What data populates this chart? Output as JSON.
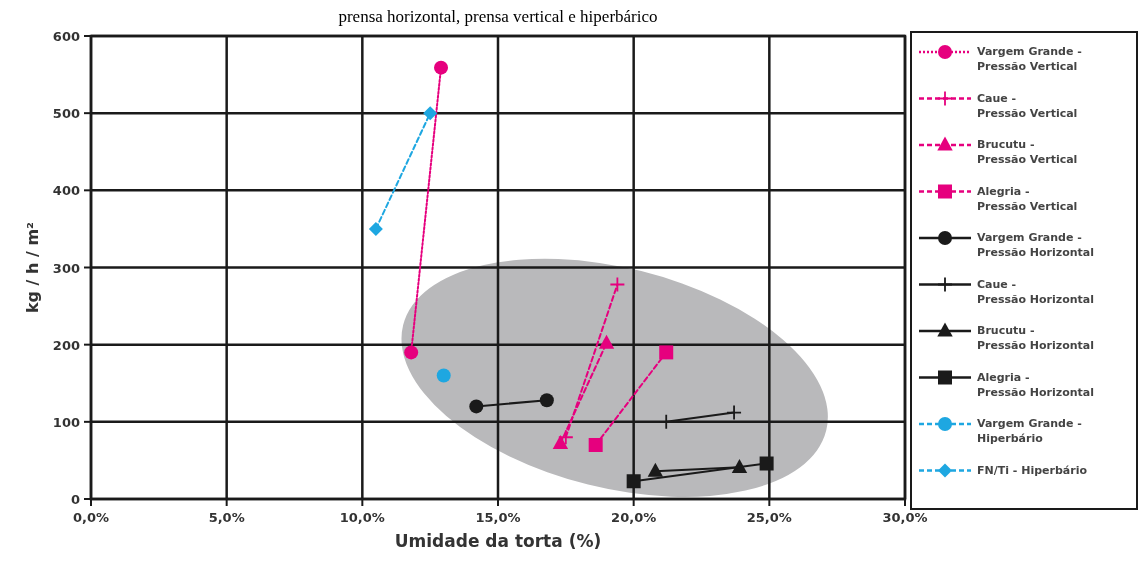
{
  "chart_data": {
    "type": "line",
    "title": "prensa horizontal, prensa vertical e hiperbárico",
    "xlabel": "Umidade da torta (%)",
    "ylabel": "kg / h / m²",
    "xlim": [
      0,
      30
    ],
    "xticks": [
      {
        "value": 0,
        "label": "0,0%"
      },
      {
        "value": 5,
        "label": "5,0%"
      },
      {
        "value": 10,
        "label": "10,0%"
      },
      {
        "value": 15,
        "label": "15,0%"
      },
      {
        "value": 20,
        "label": "20,0%"
      },
      {
        "value": 25,
        "label": "25,0%"
      },
      {
        "value": 30,
        "label": "30,0%"
      }
    ],
    "ylim": [
      0,
      600
    ],
    "yticks": [
      0,
      100,
      200,
      300,
      400,
      500,
      600
    ],
    "grid": true,
    "legend": "right",
    "series": [
      {
        "name": "Vargem Grande - Pressão Vertical",
        "color": "#e6007e",
        "marker": "circle",
        "line_style": "dotted",
        "x": [
          11.8,
          12.9
        ],
        "values": [
          190,
          559
        ]
      },
      {
        "name": "Caue - Pressão Vertical",
        "color": "#e6007e",
        "marker": "cross",
        "line_style": "dashed",
        "x": [
          17.5,
          19.4
        ],
        "values": [
          80,
          278
        ]
      },
      {
        "name": "Brucutu - Pressão Vertical",
        "color": "#e6007e",
        "marker": "triangle",
        "line_style": "dashed",
        "x": [
          17.3,
          19.0
        ],
        "values": [
          72,
          202
        ]
      },
      {
        "name": "Alegria - Pressão Vertical",
        "color": "#e6007e",
        "marker": "square",
        "line_style": "dashed",
        "x": [
          18.6,
          21.2
        ],
        "values": [
          70,
          190
        ]
      },
      {
        "name": "Vargem Grande - Pressão Horizontal",
        "color": "#1a1a1a",
        "marker": "circle",
        "line_style": "solid",
        "x": [
          14.2,
          16.8
        ],
        "values": [
          120,
          128
        ]
      },
      {
        "name": "Caue - Pressão Horizontal",
        "color": "#1a1a1a",
        "marker": "cross",
        "line_style": "solid",
        "x": [
          21.2,
          23.7
        ],
        "values": [
          100,
          112
        ]
      },
      {
        "name": "Brucutu - Pressão Horizontal",
        "color": "#1a1a1a",
        "marker": "triangle",
        "line_style": "solid",
        "x": [
          20.8,
          23.9
        ],
        "values": [
          36,
          41
        ]
      },
      {
        "name": "Alegria - Pressão Horizontal",
        "color": "#1a1a1a",
        "marker": "square",
        "line_style": "solid",
        "x": [
          20.0,
          24.9
        ],
        "values": [
          23,
          46
        ]
      },
      {
        "name": "Vargem Grande - Hiperbário",
        "color": "#1ea7e1",
        "marker": "circle",
        "line_style": "dashed",
        "x": [
          13.0
        ],
        "values": [
          160
        ]
      },
      {
        "name": "FN/Ti - Hiperbário",
        "color": "#1ea7e1",
        "marker": "diamond",
        "line_style": "dashed",
        "x": [
          10.5,
          12.5
        ],
        "values": [
          350,
          500
        ]
      }
    ]
  }
}
